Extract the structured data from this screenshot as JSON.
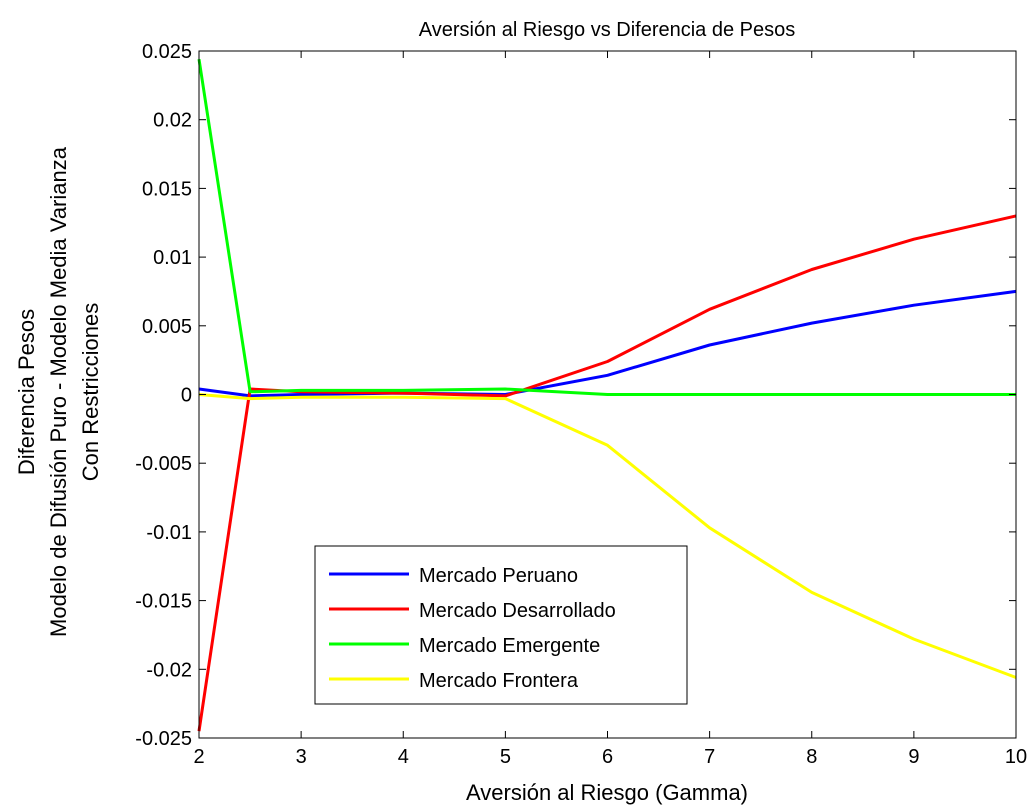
{
  "chart_data": {
    "type": "line",
    "title": "Aversión al Riesgo vs Diferencia de Pesos",
    "xlabel": "Aversión al Riesgo (Gamma)",
    "ylabel_lines": [
      "Diferencia Pesos",
      "Modelo de Difusión Puro - Modelo Media Varianza",
      "Con Restricciones"
    ],
    "xlim": [
      2,
      10
    ],
    "ylim": [
      -0.025,
      0.025
    ],
    "xticks": [
      "2",
      "3",
      "4",
      "5",
      "6",
      "7",
      "8",
      "9",
      "10"
    ],
    "yticks": [
      "-0.025",
      "-0.02",
      "-0.015",
      "-0.01",
      "-0.005",
      "0",
      "0.005",
      "0.01",
      "0.015",
      "0.02",
      "0.025"
    ],
    "grid": false,
    "legend_position": "lower-left",
    "x": [
      2,
      2.5,
      3,
      4,
      5,
      6,
      7,
      8,
      9,
      10
    ],
    "series": [
      {
        "name": "Mercado Peruano",
        "color": "#0000ff",
        "values": [
          0.0004,
          -0.0001,
          0.0,
          0.0001,
          0.0,
          0.0014,
          0.0036,
          0.0052,
          0.0065,
          0.0075
        ]
      },
      {
        "name": "Mercado Desarrollado",
        "color": "#ff0000",
        "values": [
          -0.0245,
          0.0004,
          0.0002,
          0.0001,
          -0.0001,
          0.0024,
          0.0062,
          0.0091,
          0.0113,
          0.013
        ]
      },
      {
        "name": "Mercado Emergente",
        "color": "#00ff00",
        "values": [
          0.0244,
          0.0002,
          0.0003,
          0.0003,
          0.0004,
          0.0,
          0.0,
          0.0,
          0.0,
          0.0
        ]
      },
      {
        "name": "Mercado Frontera",
        "color": "#ffff00",
        "values": [
          0.0,
          -0.0003,
          -0.0002,
          -0.0002,
          -0.0003,
          -0.0037,
          -0.0097,
          -0.0144,
          -0.0178,
          -0.0206
        ]
      }
    ]
  }
}
